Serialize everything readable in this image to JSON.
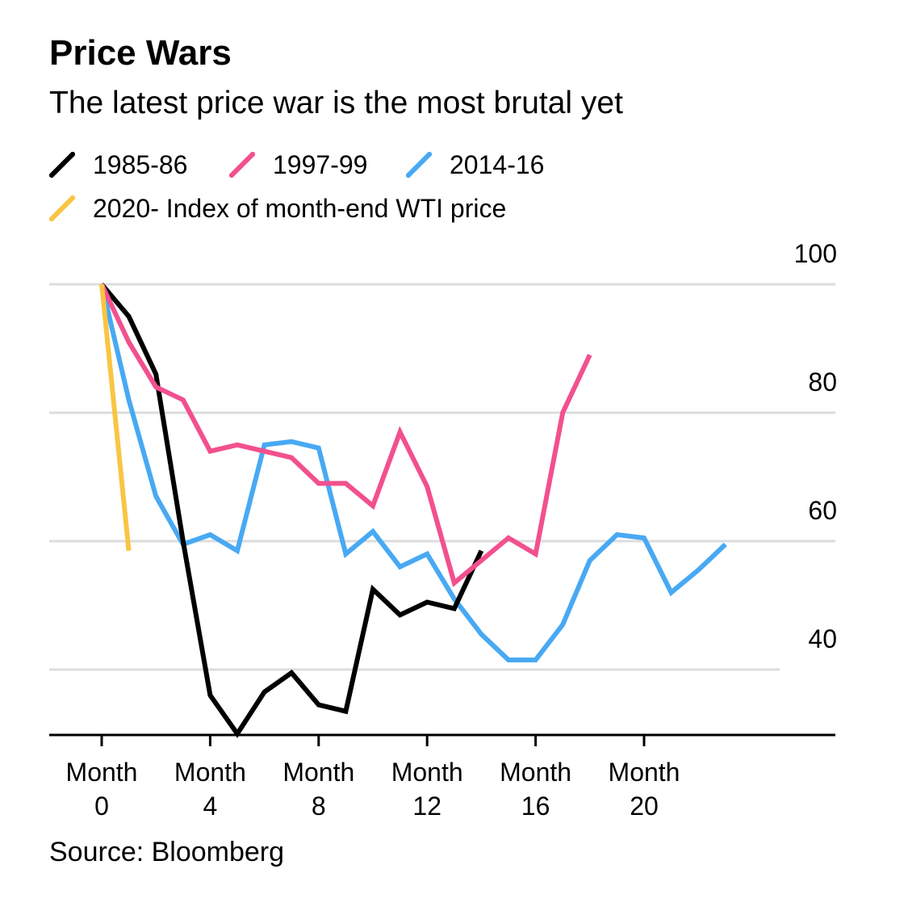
{
  "chart_data": {
    "type": "line",
    "title": "Price Wars",
    "subtitle": "The latest price war is the most brutal yet",
    "source": "Source: Bloomberg",
    "x_ticks": [
      {
        "value": 0,
        "line1": "Month",
        "line2": "0"
      },
      {
        "value": 4,
        "line1": "Month",
        "line2": "4"
      },
      {
        "value": 8,
        "line1": "Month",
        "line2": "8"
      },
      {
        "value": 12,
        "line1": "Month",
        "line2": "12"
      },
      {
        "value": 16,
        "line1": "Month",
        "line2": "16"
      },
      {
        "value": 20,
        "line1": "Month",
        "line2": "20"
      }
    ],
    "y_ticks": [
      {
        "value": 100,
        "label": "100"
      },
      {
        "value": 80,
        "label": "80"
      },
      {
        "value": 60,
        "label": "60"
      },
      {
        "value": 40,
        "label": "40"
      }
    ],
    "xlim": [
      0,
      26
    ],
    "ylim": [
      30,
      100
    ],
    "grid": "horizontal",
    "legend_position": "top-left",
    "series": [
      {
        "name": "1985-86",
        "color": "#000000",
        "x": [
          0,
          1,
          2,
          3,
          4,
          5,
          6,
          7,
          8,
          9,
          10,
          11,
          12,
          13,
          14
        ],
        "y": [
          100,
          95,
          86,
          60,
          36,
          30,
          36.5,
          39.5,
          34.5,
          33.5,
          52.5,
          48.5,
          50.5,
          49.5,
          58.5
        ]
      },
      {
        "name": "1997-99",
        "color": "#F2508E",
        "x": [
          0,
          1,
          2,
          3,
          4,
          5,
          6,
          7,
          8,
          9,
          10,
          11,
          12,
          13,
          14,
          15,
          16,
          17,
          18
        ],
        "y": [
          100,
          91,
          84,
          82,
          74,
          75,
          74,
          73,
          69,
          69,
          65.5,
          77,
          68.5,
          53.5,
          57,
          60.5,
          58,
          80,
          89
        ]
      },
      {
        "name": "2014-16",
        "color": "#48A9F3",
        "x": [
          0,
          1,
          2,
          3,
          4,
          5,
          6,
          7,
          8,
          9,
          10,
          11,
          12,
          13,
          14,
          15,
          16,
          17,
          18,
          19,
          20,
          21,
          22,
          23
        ],
        "y": [
          100,
          82,
          67,
          59.5,
          61,
          58.5,
          75,
          75.5,
          74.5,
          58,
          61.5,
          56,
          58,
          51,
          45.5,
          41.5,
          41.5,
          47,
          57,
          61,
          60.5,
          52,
          55.5,
          59.5
        ]
      },
      {
        "name": "2020- Index of month-end WTI price",
        "color": "#F9C544",
        "x": [
          0,
          1
        ],
        "y": [
          100,
          58.5
        ]
      }
    ]
  }
}
